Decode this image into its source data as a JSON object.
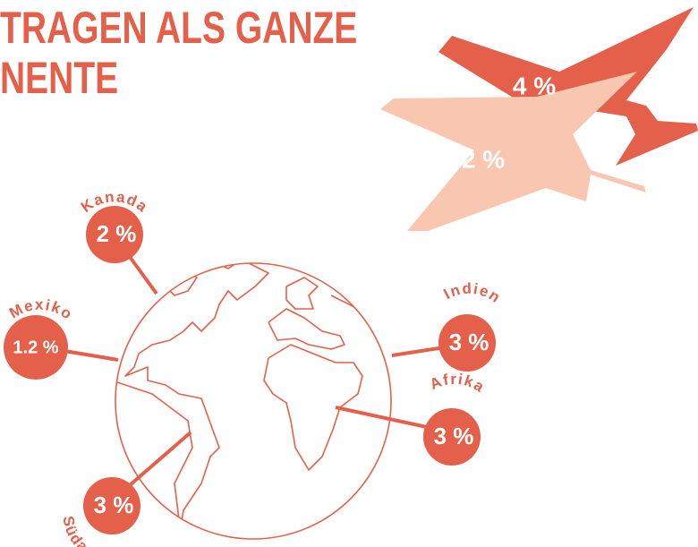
{
  "title": [
    "TRAGEN ALS GANZE",
    "NENTE"
  ],
  "planes": [
    {
      "label": "4 %"
    },
    {
      "label": "2 %"
    }
  ],
  "regions": [
    {
      "name": "Kanada",
      "label": "2 %"
    },
    {
      "name": "Mexiko",
      "label": "1.2 %"
    },
    {
      "name": "Südamerika",
      "label": "3 %"
    },
    {
      "name": "Indien",
      "label": "3 %"
    },
    {
      "name": "Afrika",
      "label": "3 %"
    }
  ]
}
